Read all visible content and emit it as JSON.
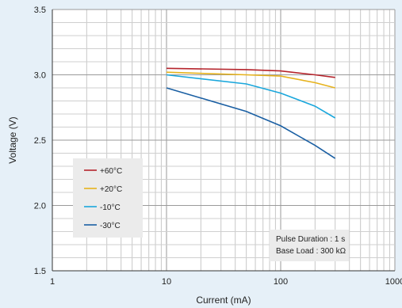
{
  "chart_data": {
    "type": "line",
    "xlabel": "Current (mA)",
    "ylabel": "Voltage (V)",
    "x_scale": "log",
    "xlim": [
      1,
      1000
    ],
    "ylim": [
      1.5,
      3.5
    ],
    "x_ticks": [
      {
        "value": 1,
        "label": "1"
      },
      {
        "value": 10,
        "label": "10"
      },
      {
        "value": 100,
        "label": "100"
      },
      {
        "value": 1000,
        "label": "1000"
      }
    ],
    "y_ticks": [
      {
        "value": 1.5,
        "label": "1.5"
      },
      {
        "value": 2.0,
        "label": "2.0"
      },
      {
        "value": 2.5,
        "label": "2.5"
      },
      {
        "value": 3.0,
        "label": "3.0"
      },
      {
        "value": 3.5,
        "label": "3.5"
      }
    ],
    "grid": true,
    "legend_position": "left",
    "series": [
      {
        "name": "+60°C",
        "color": "#b5242c",
        "points": [
          [
            10,
            3.05
          ],
          [
            50,
            3.04
          ],
          [
            100,
            3.03
          ],
          [
            200,
            3.0
          ],
          [
            300,
            2.98
          ]
        ]
      },
      {
        "name": "+20°C",
        "color": "#e6b21c",
        "points": [
          [
            10,
            3.02
          ],
          [
            50,
            3.0
          ],
          [
            100,
            2.99
          ],
          [
            200,
            2.94
          ],
          [
            300,
            2.9
          ]
        ]
      },
      {
        "name": "-10°C",
        "color": "#1aa7dc",
        "points": [
          [
            10,
            3.0
          ],
          [
            50,
            2.93
          ],
          [
            100,
            2.86
          ],
          [
            200,
            2.76
          ],
          [
            300,
            2.67
          ]
        ]
      },
      {
        "name": "-30°C",
        "color": "#1a5fa3",
        "points": [
          [
            10,
            2.9
          ],
          [
            50,
            2.72
          ],
          [
            100,
            2.61
          ],
          [
            200,
            2.46
          ],
          [
            300,
            2.36
          ]
        ]
      }
    ],
    "annotations": [
      "Pulse Duration : 1 s",
      "Base Load : 300 kΩ"
    ]
  }
}
